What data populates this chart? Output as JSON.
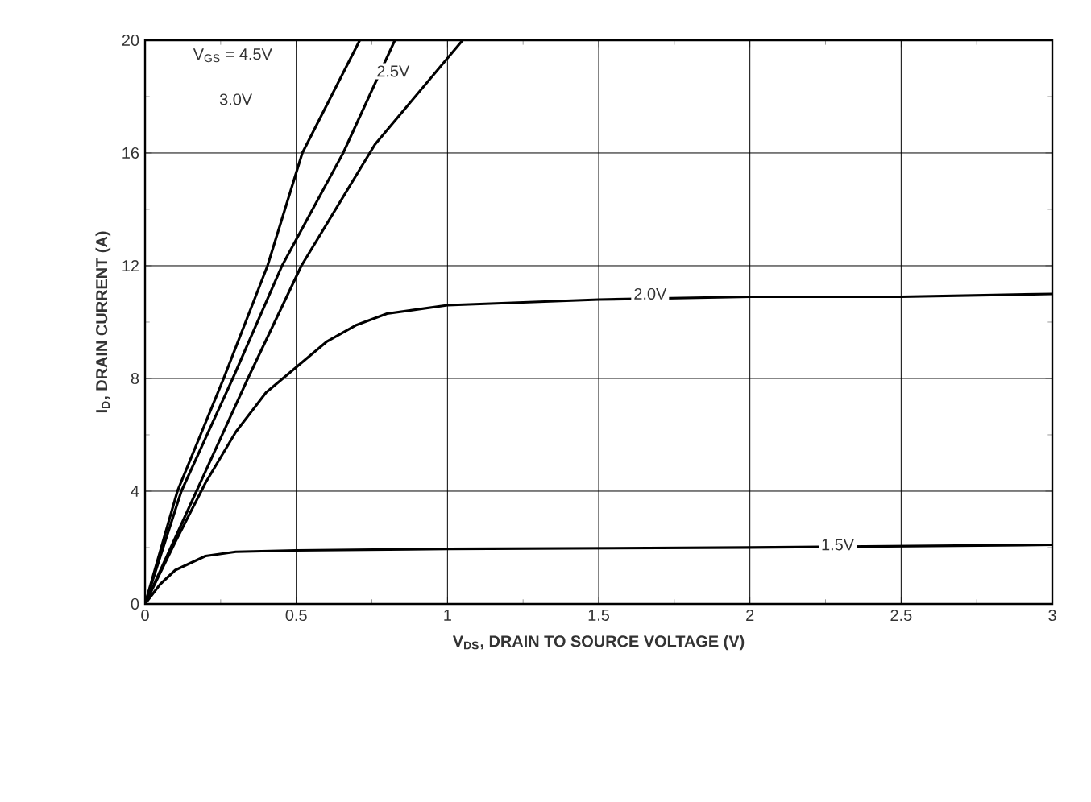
{
  "chart_data": {
    "type": "line",
    "xlabel": "V$_{DS}$, DRAIN TO SOURCE VOLTAGE (V)",
    "ylabel": "I$_{D}$, DRAIN CURRENT (A)",
    "xlim": [
      0,
      3
    ],
    "ylim": [
      0,
      20
    ],
    "xticks": [
      0,
      0.5,
      1,
      1.5,
      2,
      2.5,
      3
    ],
    "yticks": [
      0,
      4,
      8,
      12,
      16,
      20
    ],
    "grid": true,
    "marker": "none",
    "line_style": "solid",
    "series": [
      {
        "color": "#000000",
        "x": [
          0,
          0.107,
          0.26,
          0.405,
          0.52,
          0.71
        ],
        "values": [
          0,
          4,
          8,
          12,
          16,
          20
        ]
      },
      {
        "color": "#000000",
        "x": [
          0,
          0.12,
          0.29,
          0.453,
          0.655,
          0.826
        ],
        "values": [
          0,
          4,
          8,
          12,
          16,
          20
        ]
      },
      {
        "color": "#000000",
        "x": [
          0,
          0.17,
          0.34,
          0.517,
          0.76,
          1.05
        ],
        "values": [
          0,
          4,
          8,
          12,
          16.3,
          20
        ]
      },
      {
        "color": "#000000",
        "x": [
          0,
          0.1,
          0.2,
          0.3,
          0.4,
          0.5,
          0.6,
          0.7,
          0.8,
          1,
          1.5,
          2,
          2.5,
          3
        ],
        "values": [
          0,
          2.2,
          4.3,
          6.1,
          7.5,
          8.4,
          9.3,
          9.9,
          10.3,
          10.6,
          10.8,
          10.9,
          10.9,
          11
        ]
      },
      {
        "color": "#000000",
        "x": [
          0,
          0.05,
          0.1,
          0.2,
          0.3,
          0.5,
          1,
          2,
          3
        ],
        "values": [
          0,
          0.7,
          1.2,
          1.7,
          1.85,
          1.9,
          1.95,
          2,
          2.1
        ]
      }
    ],
    "annotations": [
      "V$_{GS}$ = 4.5V",
      {
        "text": "3.0V",
        "x": 0.3,
        "y": 17.9
      },
      {
        "text": "2.5V",
        "x": 0.82,
        "y": 18.9
      },
      {
        "text": "2.0V",
        "x": 1.67,
        "y": 11
      },
      {
        "text": "1.5V",
        "x": 2.29,
        "y": 2.1
      }
    ]
  }
}
